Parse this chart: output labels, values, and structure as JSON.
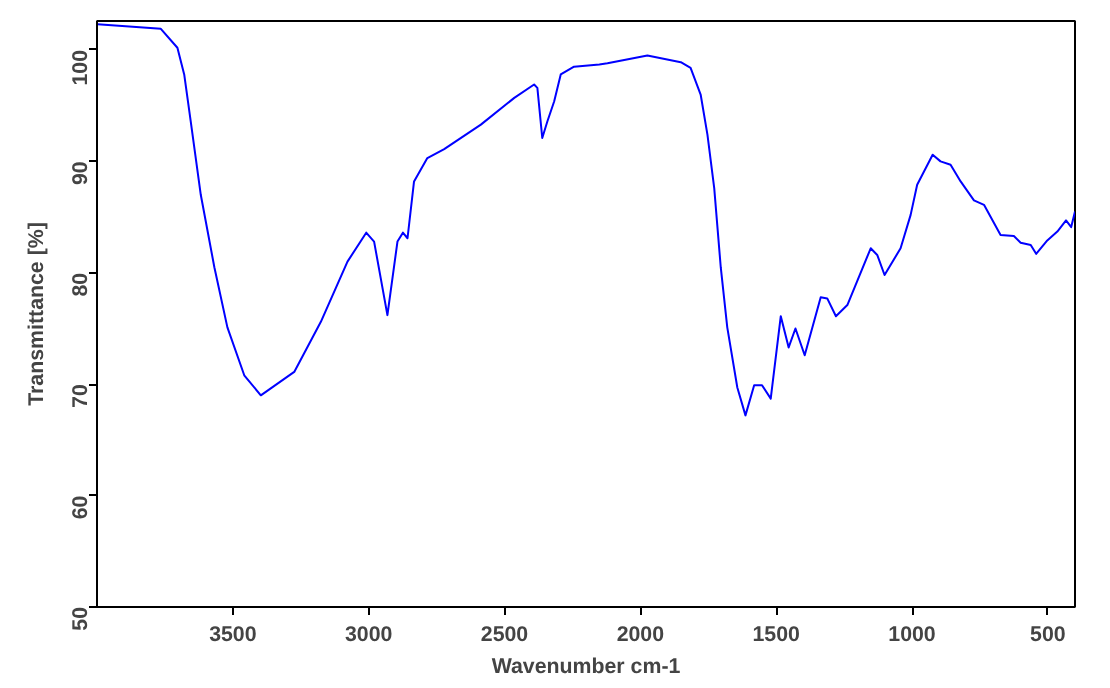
{
  "chart_data": {
    "type": "line",
    "xlabel": "Wavenumber cm-1",
    "ylabel": "Transmittance [%]",
    "xlim": [
      4000,
      400
    ],
    "ylim": [
      50,
      102.6
    ],
    "xticks": [
      3500,
      3000,
      2500,
      2000,
      1500,
      1000,
      500
    ],
    "yticks": [
      50,
      60,
      70,
      80,
      90,
      100
    ],
    "grid": false,
    "marker": "none",
    "line_style": "solid",
    "series": [
      {
        "color": "#0000ff",
        "x": [
          3998,
          3765,
          3704,
          3679,
          3655,
          3618,
          3568,
          3520,
          3458,
          3397,
          3274,
          3176,
          3078,
          3009,
          2980,
          2931,
          2894,
          2874,
          2857,
          2833,
          2784,
          2722,
          2587,
          2464,
          2391,
          2379,
          2361,
          2342,
          2317,
          2293,
          2244,
          2151,
          2121,
          1974,
          1851,
          1815,
          1778,
          1753,
          1728,
          1704,
          1680,
          1643,
          1613,
          1581,
          1552,
          1520,
          1483,
          1454,
          1429,
          1395,
          1336,
          1312,
          1280,
          1238,
          1152,
          1128,
          1101,
          1042,
          1005,
          981,
          924,
          895,
          858,
          821,
          772,
          735,
          674,
          625,
          600,
          563,
          543,
          502,
          465,
          433,
          414,
          400
        ],
        "values": [
          102.3,
          101.9,
          100.2,
          97.8,
          93.6,
          87.0,
          80.5,
          75.1,
          70.8,
          69.0,
          71.1,
          75.6,
          81.0,
          83.6,
          82.8,
          76.2,
          82.8,
          83.6,
          83.1,
          88.2,
          90.3,
          91.1,
          93.3,
          95.7,
          96.9,
          96.6,
          92.1,
          93.6,
          95.4,
          97.8,
          98.5,
          98.7,
          98.8,
          99.5,
          98.9,
          98.4,
          96.0,
          92.4,
          87.6,
          80.5,
          75.1,
          69.7,
          67.2,
          69.9,
          69.9,
          68.7,
          76.1,
          73.3,
          75.0,
          72.6,
          77.8,
          77.7,
          76.1,
          77.1,
          82.2,
          81.6,
          79.8,
          82.2,
          85.2,
          87.9,
          90.6,
          90.0,
          89.7,
          88.2,
          86.5,
          86.1,
          83.4,
          83.3,
          82.7,
          82.5,
          81.7,
          82.9,
          83.7,
          84.7,
          84.1,
          85.5
        ]
      }
    ]
  }
}
